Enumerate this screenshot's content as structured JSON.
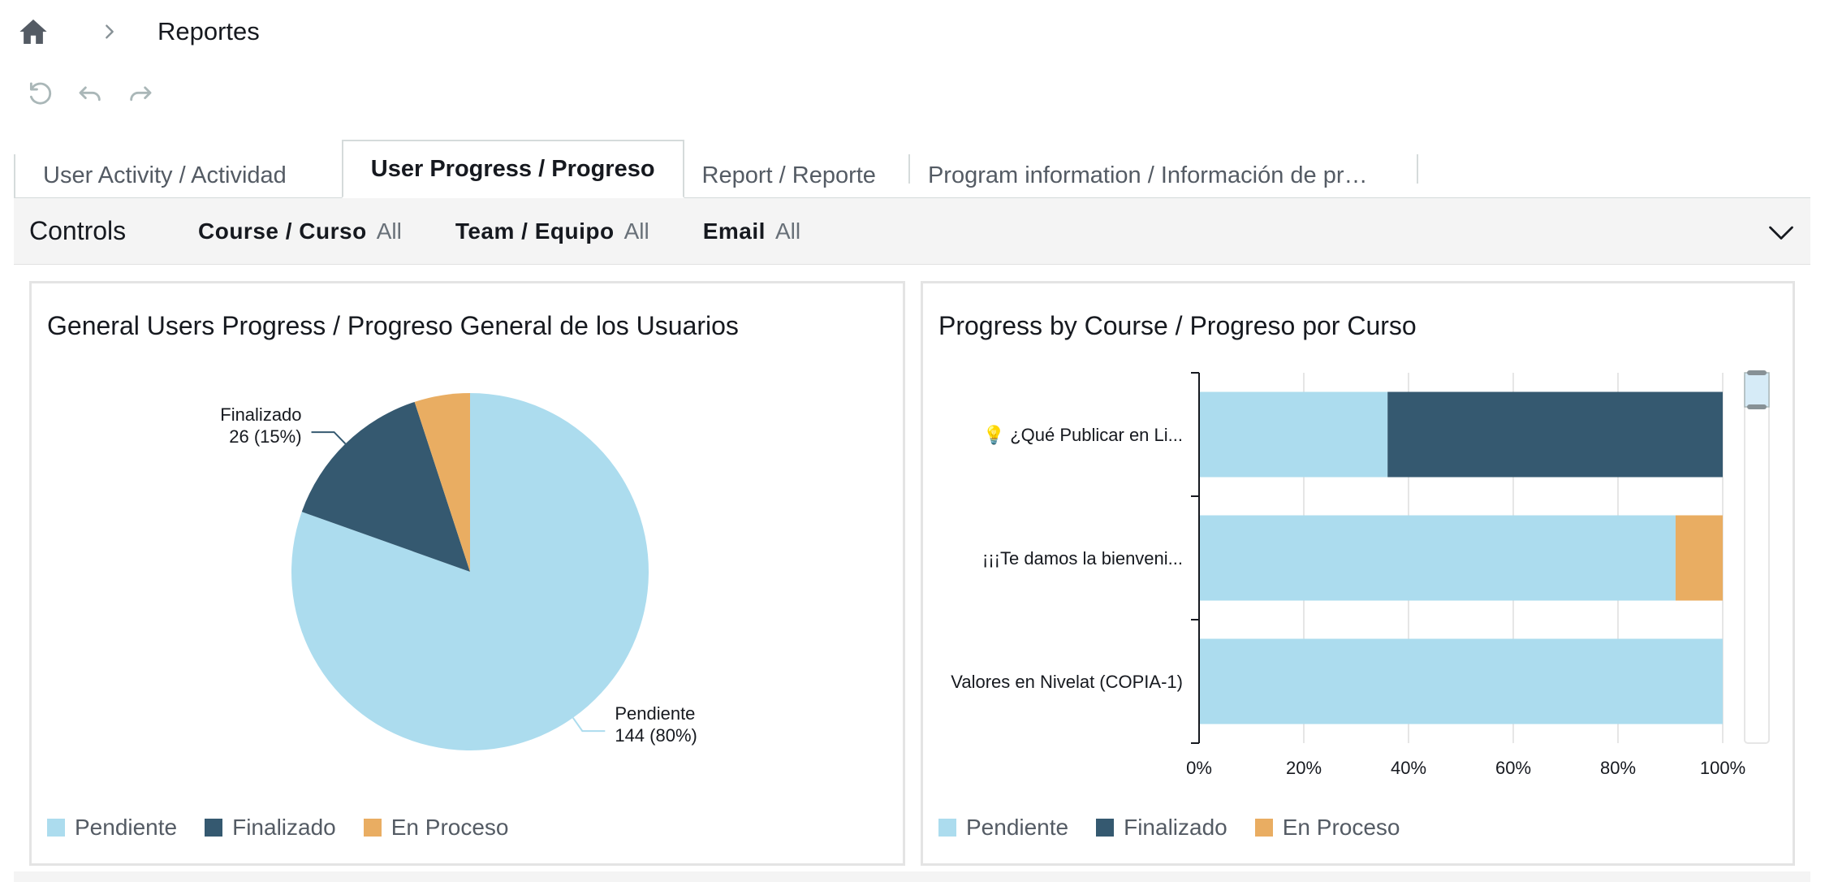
{
  "breadcrumb": {
    "current": "Reportes"
  },
  "tabs": [
    {
      "label": "User Activity / Actividad"
    },
    {
      "label": "User Progress / Progreso"
    },
    {
      "label": "Report / Reporte"
    },
    {
      "label": "Program information / Información de pr…"
    }
  ],
  "controls": {
    "title": "Controls",
    "filters": [
      {
        "label": "Course / Curso",
        "value": "All"
      },
      {
        "label": "Team / Equipo",
        "value": "All"
      },
      {
        "label": "Email",
        "value": "All"
      }
    ]
  },
  "colors": {
    "pendiente": "#acdcee",
    "finalizado": "#355970",
    "en_proceso": "#e9ad62"
  },
  "chart_data": [
    {
      "type": "pie",
      "title": "General Users Progress / Progreso General de los Usuarios",
      "slices": [
        {
          "name": "Pendiente",
          "value": 144,
          "percent": 80,
          "label_lines": [
            "Pendiente",
            "144 (80%)"
          ]
        },
        {
          "name": "Finalizado",
          "value": 26,
          "percent": 15,
          "label_lines": [
            "Finalizado",
            "26 (15%)"
          ]
        },
        {
          "name": "En Proceso",
          "value": 9,
          "percent": 5
        }
      ],
      "legend": [
        "Pendiente",
        "Finalizado",
        "En Proceso"
      ]
    },
    {
      "type": "bar",
      "orientation": "horizontal",
      "stacked": true,
      "title": "Progress by Course / Progreso por Curso",
      "categories": [
        "💡 ¿Qué Publicar en Li...",
        "¡¡¡Te damos la bienveni...",
        "Valores en Nivelat (COPIA-1)"
      ],
      "series": [
        {
          "name": "Pendiente",
          "values": [
            36,
            91,
            100
          ]
        },
        {
          "name": "Finalizado",
          "values": [
            64,
            0,
            0
          ]
        },
        {
          "name": "En Proceso",
          "values": [
            0,
            9,
            0
          ]
        }
      ],
      "xticks": [
        "0%",
        "20%",
        "40%",
        "60%",
        "80%",
        "100%"
      ],
      "xlim": [
        0,
        100
      ],
      "grid": true,
      "legend": [
        "Pendiente",
        "Finalizado",
        "En Proceso"
      ]
    }
  ]
}
